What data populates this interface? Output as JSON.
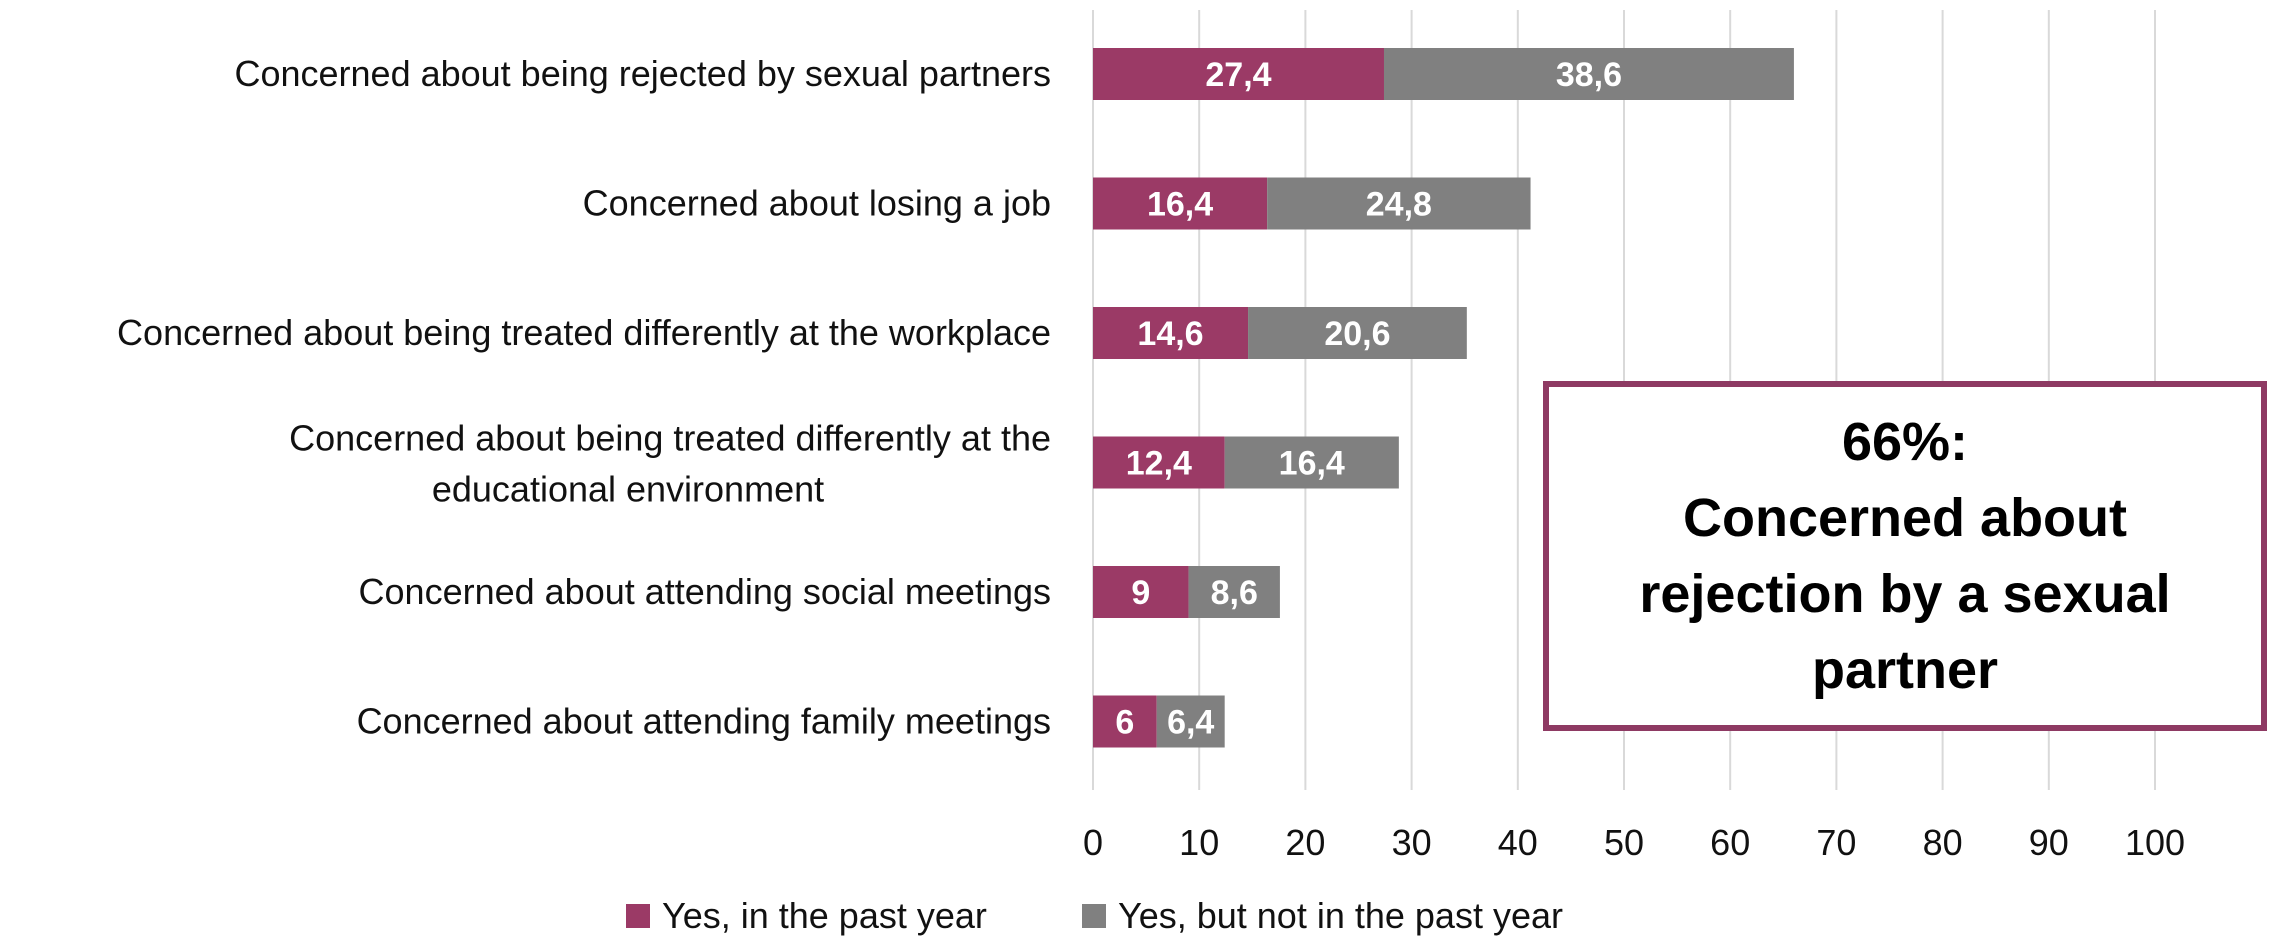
{
  "chart_data": {
    "type": "bar",
    "orientation": "horizontal",
    "stacked": true,
    "categories": [
      [
        "Concerned about being rejected by sexual partners"
      ],
      [
        "Concerned about losing a job"
      ],
      [
        "Concerned about being treated differently at the workplace"
      ],
      [
        "Concerned about being treated differently at the",
        "educational environment"
      ],
      [
        "Concerned about attending social meetings"
      ],
      [
        "Concerned about attending family meetings"
      ]
    ],
    "series": [
      {
        "name": "Yes, in the past year",
        "color": "#9b3a66",
        "values": [
          27.4,
          16.4,
          14.6,
          12.4,
          9,
          6
        ],
        "labels": [
          "27,4",
          "16,4",
          "14,6",
          "12,4",
          "9",
          "6"
        ]
      },
      {
        "name": "Yes, but not in the past year",
        "color": "#808080",
        "values": [
          38.6,
          24.8,
          20.6,
          16.4,
          8.6,
          6.4
        ],
        "labels": [
          "38,6",
          "24,8",
          "20,6",
          "16,4",
          "8,6",
          "6,4"
        ]
      }
    ],
    "xlim": [
      0,
      100
    ],
    "xticks": [
      0,
      10,
      20,
      30,
      40,
      50,
      60,
      70,
      80,
      90,
      100
    ],
    "grid": true,
    "legend_position": "bottom"
  },
  "callout": {
    "headline": "66%:",
    "text": "Concerned about rejection by a sexual partner",
    "border_color": "#8e3a63"
  }
}
